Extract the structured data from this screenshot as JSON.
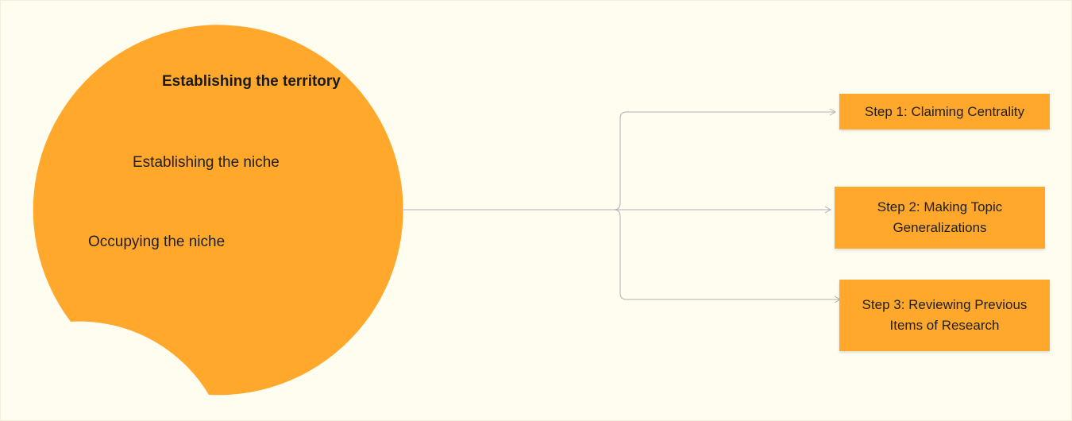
{
  "colors": {
    "background": "#fffcf0",
    "crescent": "#ffa82b",
    "step_box": "#ffa82b",
    "connector": "#b0b0b0"
  },
  "circle_labels": {
    "territory": "Establishing the territory",
    "niche_establish": "Establishing the niche",
    "niche_occupy": "Occupying the niche"
  },
  "steps": [
    {
      "label": "Step 1: Claiming Centrality"
    },
    {
      "label": "Step 2: Making Topic Generalizations"
    },
    {
      "label": "Step 3: Reviewing Previous Items of Research"
    }
  ]
}
